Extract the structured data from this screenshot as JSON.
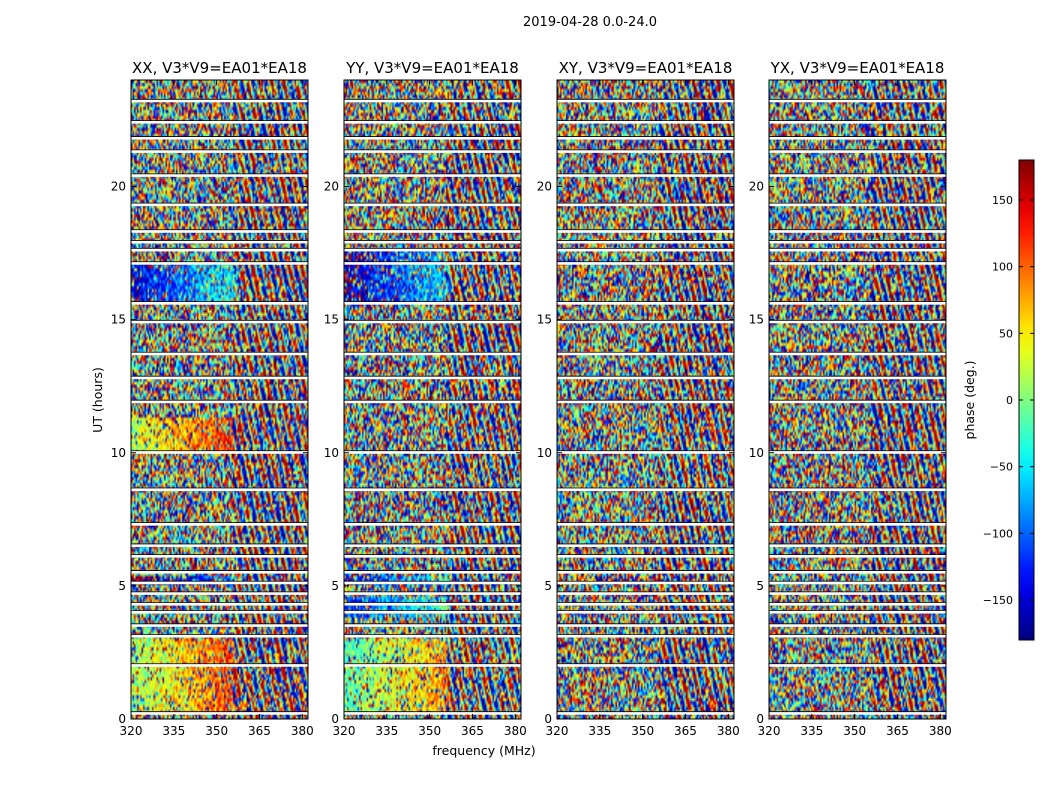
{
  "chart_data": {
    "type": "heatmap",
    "title": "2019-04-28 0.0-24.0",
    "xlabel": "frequency (MHz)",
    "ylabel": "UT (hours)",
    "xlim": [
      320,
      382
    ],
    "ylim": [
      0,
      24
    ],
    "xticks": [
      320,
      335,
      350,
      365,
      380
    ],
    "yticks": [
      0,
      5,
      10,
      15,
      20
    ],
    "panels": [
      {
        "title": "XX, V3*V9=EA01*EA18",
        "pol": "XX"
      },
      {
        "title": "YY, V3*V9=EA01*EA18",
        "pol": "YY"
      },
      {
        "title": "XY, V3*V9=EA01*EA18",
        "pol": "XY"
      },
      {
        "title": "YX, V3*V9=EA01*EA18",
        "pol": "YX"
      }
    ],
    "colorbar": {
      "label": "phase (deg.)",
      "range": [
        -180,
        180
      ],
      "ticks": [
        -150,
        -100,
        -50,
        0,
        50,
        100,
        150
      ],
      "tick_labels": [
        "−150",
        "−100",
        "−50",
        "0",
        "50",
        "100",
        "150"
      ],
      "colormap": "jet"
    },
    "flagged_ut_hours": [
      0.2,
      2.0,
      3.1,
      3.5,
      4.0,
      4.3,
      4.7,
      5.1,
      5.5,
      6.1,
      6.5,
      7.3,
      8.6,
      10.0,
      11.9,
      12.8,
      13.7,
      14.9,
      15.6,
      17.1,
      17.6,
      17.9,
      18.3,
      19.3,
      20.4,
      21.3,
      21.8,
      22.4,
      23.2
    ]
  }
}
